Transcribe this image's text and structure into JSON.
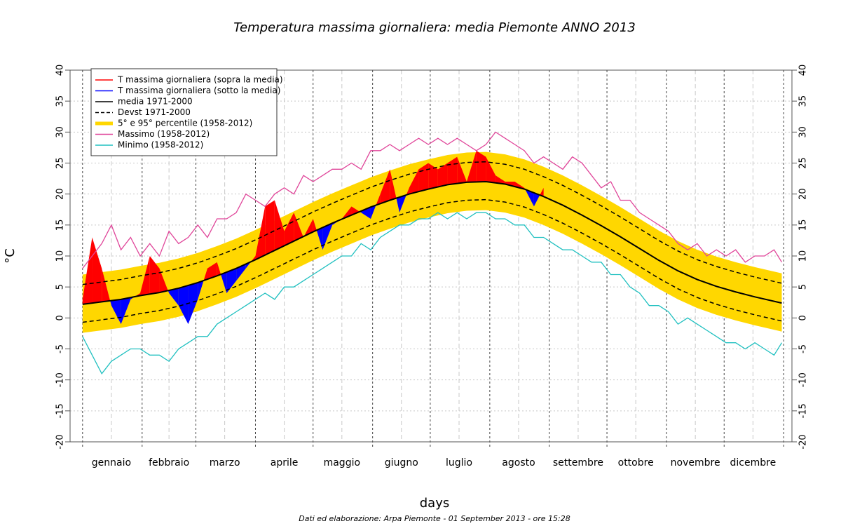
{
  "chart_data": {
    "type": "climate",
    "title": "Temperatura massima giornaliera: media Piemonte ANNO 2013",
    "x_label": "days",
    "y_label": "°C",
    "footer": "Dati ed elaborazione: Arpa Piemonte - 01 September 2013 - ore 15:28",
    "xlim": [
      -5.5,
      370.3
    ],
    "ylim": [
      -20,
      40
    ],
    "yticks": [
      -20,
      -15,
      -10,
      -5,
      0,
      5,
      10,
      15,
      20,
      25,
      30,
      35,
      40
    ],
    "xticks": [
      {
        "value": 16,
        "label": "gennaio"
      },
      {
        "value": 46,
        "label": "febbraio"
      },
      {
        "value": 75,
        "label": "marzo"
      },
      {
        "value": 106,
        "label": "aprile"
      },
      {
        "value": 136,
        "label": "maggio"
      },
      {
        "value": 167,
        "label": "giugno"
      },
      {
        "value": 197,
        "label": "luglio"
      },
      {
        "value": 228,
        "label": "agosto"
      },
      {
        "value": 259,
        "label": "settembre"
      },
      {
        "value": 289,
        "label": "ottobre"
      },
      {
        "value": 320,
        "label": "novembre"
      },
      {
        "value": 350,
        "label": "dicembre"
      }
    ],
    "month_boundaries": [
      1,
      32,
      60,
      91,
      121,
      152,
      182,
      213,
      244,
      274,
      305,
      335,
      366
    ],
    "grid": true,
    "legend": "top-left",
    "series": [
      {
        "name": "T massima giornaliera (sopra la media)",
        "color": "#ff0000",
        "style": "fill",
        "x": [
          1,
          6,
          11,
          16,
          21,
          26,
          31,
          36,
          41,
          46,
          51,
          56,
          61,
          66,
          71,
          76,
          81,
          86,
          91,
          96,
          101,
          106,
          111,
          116,
          121,
          126,
          131,
          136,
          141,
          146,
          151,
          156,
          161,
          166,
          171,
          176,
          181,
          186,
          191,
          196,
          201,
          206,
          211,
          216,
          221,
          226,
          231,
          236,
          241
        ],
        "values": [
          3,
          13,
          8,
          2,
          -1,
          3,
          4,
          10,
          8,
          4,
          2,
          -1,
          3,
          8,
          9,
          4,
          6,
          8,
          10,
          18,
          19,
          14,
          17,
          13,
          16,
          11,
          15,
          16,
          18,
          17,
          16,
          20,
          24,
          17,
          21,
          24,
          25,
          24,
          25,
          26,
          22,
          27,
          26,
          23,
          22,
          22,
          21,
          18,
          21
        ]
      },
      {
        "name": "T massima giornaliera (sotto la media)",
        "color": "#0000ff",
        "style": "fill"
      },
      {
        "name": "media 1971-2000",
        "color": "#000000",
        "style": "solid",
        "x": [
          1,
          11,
          21,
          31,
          41,
          51,
          61,
          71,
          81,
          91,
          101,
          111,
          121,
          131,
          141,
          151,
          161,
          171,
          181,
          191,
          201,
          211,
          221,
          231,
          241,
          251,
          261,
          271,
          281,
          291,
          301,
          311,
          321,
          331,
          341,
          351,
          365
        ],
        "values": [
          2.2,
          2.6,
          3.0,
          3.6,
          4.1,
          4.8,
          5.7,
          6.8,
          8.0,
          9.4,
          10.9,
          12.4,
          13.9,
          15.3,
          16.6,
          17.9,
          19.0,
          20.0,
          20.8,
          21.5,
          21.9,
          22.0,
          21.6,
          20.8,
          19.6,
          18.2,
          16.6,
          14.9,
          13.1,
          11.2,
          9.3,
          7.6,
          6.2,
          5.1,
          4.2,
          3.4,
          2.4
        ]
      },
      {
        "name": "Devst 1971-2000",
        "color": "#000000",
        "style": "dashed",
        "x": [
          1,
          11,
          21,
          31,
          41,
          51,
          61,
          71,
          81,
          91,
          101,
          111,
          121,
          131,
          141,
          151,
          161,
          171,
          181,
          191,
          201,
          211,
          221,
          231,
          241,
          251,
          261,
          271,
          281,
          291,
          301,
          311,
          321,
          331,
          341,
          351,
          365
        ],
        "upper": [
          5.4,
          5.8,
          6.2,
          6.8,
          7.3,
          8.0,
          8.9,
          10.0,
          11.2,
          12.6,
          14.1,
          15.6,
          17.1,
          18.5,
          19.8,
          21.1,
          22.2,
          23.2,
          24.0,
          24.7,
          25.1,
          25.2,
          24.8,
          24.0,
          22.8,
          21.4,
          19.8,
          18.1,
          16.3,
          14.4,
          12.5,
          10.8,
          9.4,
          8.3,
          7.4,
          6.6,
          5.6
        ],
        "lower": [
          -0.7,
          -0.3,
          0.1,
          0.7,
          1.2,
          1.9,
          2.8,
          3.9,
          5.1,
          6.5,
          8.0,
          9.5,
          11.0,
          12.4,
          13.7,
          15.0,
          16.1,
          17.1,
          17.9,
          18.6,
          19.0,
          19.1,
          18.7,
          17.9,
          16.7,
          15.3,
          13.7,
          12.0,
          10.2,
          8.3,
          6.4,
          4.7,
          3.3,
          2.2,
          1.3,
          0.5,
          -0.5
        ]
      },
      {
        "name": "5° e 95° percentile (1958-2012)",
        "color": "#ffd700",
        "style": "band",
        "x": [
          1,
          11,
          21,
          31,
          41,
          51,
          61,
          71,
          81,
          91,
          101,
          111,
          121,
          131,
          141,
          151,
          161,
          171,
          181,
          191,
          201,
          211,
          221,
          231,
          241,
          251,
          261,
          271,
          281,
          291,
          301,
          311,
          321,
          331,
          341,
          351,
          365
        ],
        "upper": [
          7.0,
          7.4,
          7.8,
          8.4,
          8.9,
          9.6,
          10.5,
          11.6,
          12.8,
          14.2,
          15.7,
          17.2,
          18.7,
          20.1,
          21.4,
          22.7,
          23.8,
          24.8,
          25.6,
          26.3,
          26.7,
          26.8,
          26.4,
          25.6,
          24.4,
          23.0,
          21.4,
          19.7,
          17.9,
          16.0,
          14.1,
          12.4,
          11.0,
          9.9,
          9.0,
          8.2,
          7.2
        ],
        "lower": [
          -2.4,
          -2.0,
          -1.6,
          -1.0,
          -0.5,
          0.2,
          1.1,
          2.2,
          3.4,
          4.8,
          6.3,
          7.8,
          9.3,
          10.7,
          12.0,
          13.3,
          14.4,
          15.4,
          16.2,
          16.9,
          17.3,
          17.4,
          17.0,
          16.2,
          15.0,
          13.6,
          12.0,
          10.3,
          8.5,
          6.6,
          4.7,
          3.0,
          1.6,
          0.5,
          -0.4,
          -1.2,
          -2.2
        ]
      },
      {
        "name": "Massimo (1958-2012)",
        "color": "#e0469a",
        "style": "solid",
        "x": [
          1,
          6,
          11,
          16,
          21,
          26,
          31,
          36,
          41,
          46,
          51,
          56,
          61,
          66,
          71,
          76,
          81,
          86,
          91,
          96,
          101,
          106,
          111,
          116,
          121,
          126,
          131,
          136,
          141,
          146,
          151,
          156,
          161,
          166,
          171,
          176,
          181,
          186,
          191,
          196,
          201,
          206,
          211,
          216,
          221,
          226,
          231,
          236,
          241,
          246,
          251,
          256,
          261,
          266,
          271,
          276,
          281,
          286,
          291,
          296,
          301,
          306,
          311,
          316,
          321,
          326,
          331,
          336,
          341,
          346,
          351,
          356,
          361,
          365
        ],
        "values": [
          8,
          10,
          12,
          15,
          11,
          13,
          10,
          12,
          10,
          14,
          12,
          13,
          15,
          13,
          16,
          16,
          17,
          20,
          19,
          18,
          20,
          21,
          20,
          23,
          22,
          23,
          24,
          24,
          25,
          24,
          27,
          27,
          28,
          27,
          28,
          29,
          28,
          29,
          28,
          29,
          28,
          27,
          28,
          30,
          29,
          28,
          27,
          25,
          26,
          25,
          24,
          26,
          25,
          23,
          21,
          22,
          19,
          19,
          17,
          16,
          15,
          14,
          12,
          11,
          12,
          10,
          11,
          10,
          11,
          9,
          10,
          10,
          11,
          9
        ]
      },
      {
        "name": "Minimo (1958-2012)",
        "color": "#20c0c0",
        "style": "solid",
        "x": [
          1,
          6,
          11,
          16,
          21,
          26,
          31,
          36,
          41,
          46,
          51,
          56,
          61,
          66,
          71,
          76,
          81,
          86,
          91,
          96,
          101,
          106,
          111,
          116,
          121,
          126,
          131,
          136,
          141,
          146,
          151,
          156,
          161,
          166,
          171,
          176,
          181,
          186,
          191,
          196,
          201,
          206,
          211,
          216,
          221,
          226,
          231,
          236,
          241,
          246,
          251,
          256,
          261,
          266,
          271,
          276,
          281,
          286,
          291,
          296,
          301,
          306,
          311,
          316,
          321,
          326,
          331,
          336,
          341,
          346,
          351,
          356,
          361,
          365
        ],
        "values": [
          -3,
          -6,
          -9,
          -7,
          -6,
          -5,
          -5,
          -6,
          -6,
          -7,
          -5,
          -4,
          -3,
          -3,
          -1,
          0,
          1,
          2,
          3,
          4,
          3,
          5,
          5,
          6,
          7,
          8,
          9,
          10,
          10,
          12,
          11,
          13,
          14,
          15,
          15,
          16,
          16,
          17,
          16,
          17,
          16,
          17,
          17,
          16,
          16,
          15,
          15,
          13,
          13,
          12,
          11,
          11,
          10,
          9,
          9,
          7,
          7,
          5,
          4,
          2,
          2,
          1,
          -1,
          0,
          -1,
          -2,
          -3,
          -4,
          -4,
          -5,
          -4,
          -5,
          -6,
          -4
        ]
      }
    ]
  }
}
